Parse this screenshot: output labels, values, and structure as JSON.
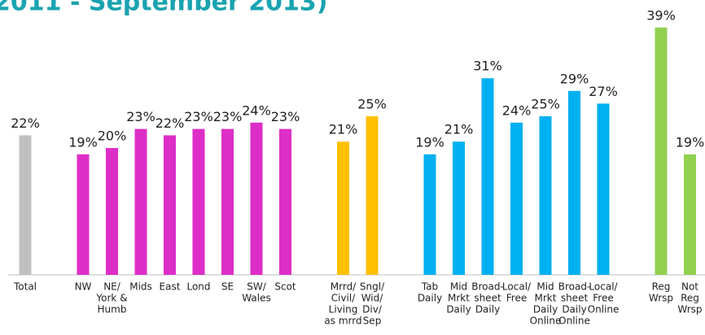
{
  "chart_data": {
    "type": "bar",
    "title": "2011 - September 2013)",
    "categories": [
      [
        "Total"
      ],
      [
        "NW"
      ],
      [
        "NE/",
        "York &",
        "Humb"
      ],
      [
        "Mids"
      ],
      [
        "East"
      ],
      [
        "Lond"
      ],
      [
        "SE"
      ],
      [
        "SW/",
        "Wales"
      ],
      [
        "Scot"
      ],
      [
        "Mrrd/",
        "Civil/",
        "Living",
        "as mrrd"
      ],
      [
        "Sngl/",
        "Wid/",
        "Div/",
        "Sep"
      ],
      [
        "Tab",
        "Daily"
      ],
      [
        "Mid",
        "Mrkt",
        "Daily"
      ],
      [
        "Broad-",
        "sheet",
        "Daily"
      ],
      [
        "Local/",
        "Free"
      ],
      [
        "Mid",
        "Mrkt",
        "Daily",
        "Online"
      ],
      [
        "Broad-",
        "sheet",
        "Daily",
        "Online"
      ],
      [
        "Local/",
        "Free",
        "Online"
      ],
      [
        "Reg",
        "Wrsp"
      ],
      [
        "Not",
        "Reg",
        "Wrsp"
      ]
    ],
    "values": [
      22,
      19,
      20,
      23,
      22,
      23,
      23,
      24,
      23,
      21,
      25,
      19,
      21,
      31,
      24,
      25,
      29,
      27,
      39,
      19
    ],
    "value_labels": [
      "22%",
      "19%",
      "20%",
      "23%",
      "22%",
      "23%",
      "23%",
      "24%",
      "23%",
      "21%",
      "25%",
      "19%",
      "21%",
      "31%",
      "24%",
      "25%",
      "29%",
      "27%",
      "39%",
      "19%"
    ],
    "colors": [
      "#c0c0c0",
      "#dd2ec8",
      "#dd2ec8",
      "#dd2ec8",
      "#dd2ec8",
      "#dd2ec8",
      "#dd2ec8",
      "#dd2ec8",
      "#dd2ec8",
      "#ffc000",
      "#ffc000",
      "#00b0f0",
      "#00b0f0",
      "#00b0f0",
      "#00b0f0",
      "#00b0f0",
      "#00b0f0",
      "#00b0f0",
      "#92d050",
      "#92d050"
    ],
    "ylim": [
      0,
      40
    ]
  }
}
